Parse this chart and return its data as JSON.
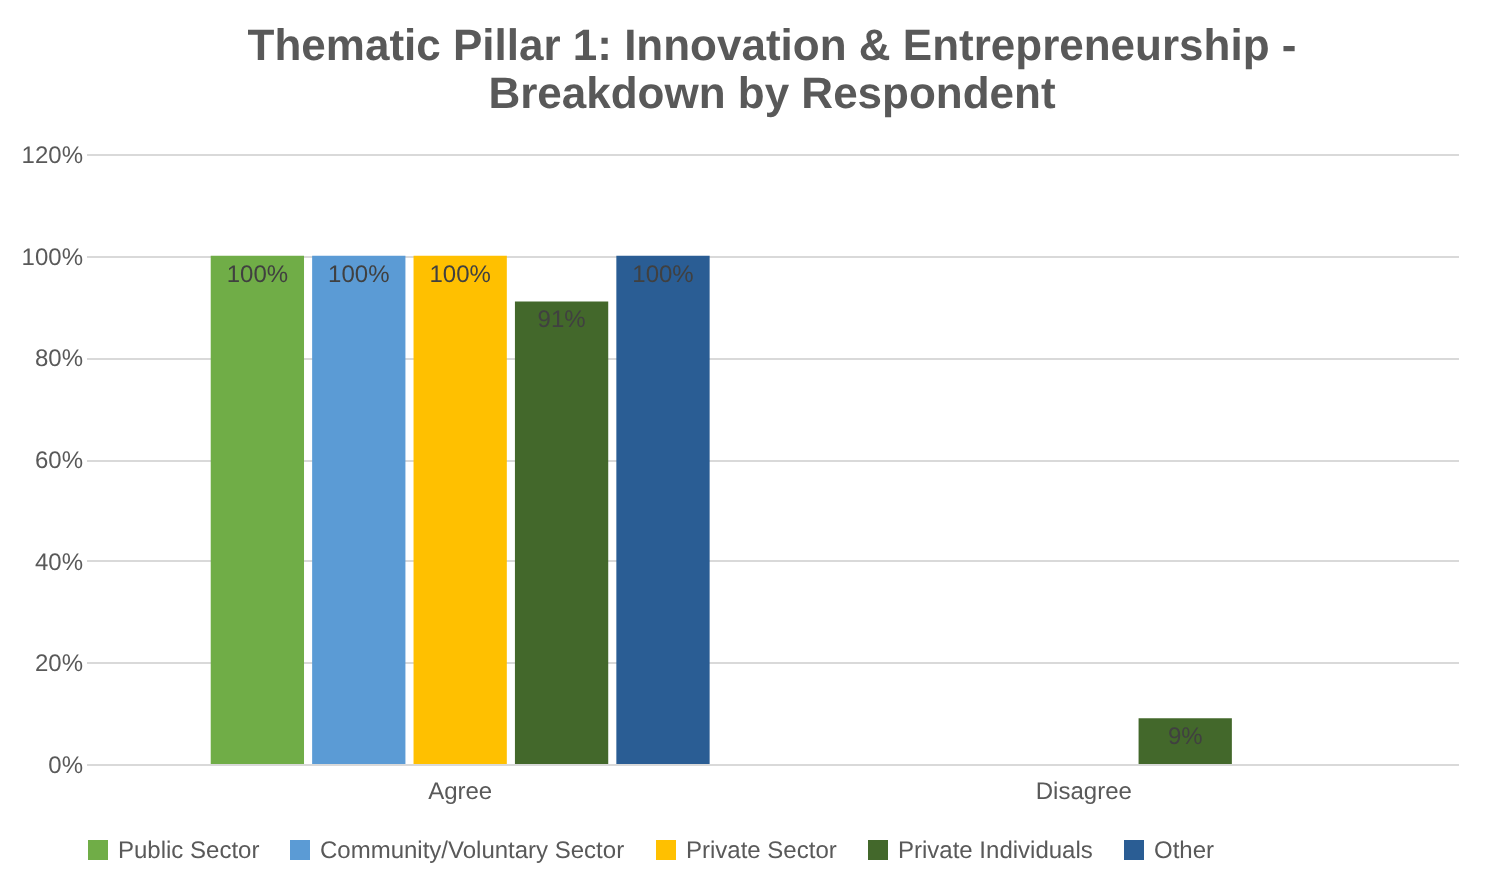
{
  "chart_data": {
    "type": "bar",
    "title": "Thematic Pillar 1: Innovation & Entrepreneurship - Breakdown by Respondent",
    "categories": [
      "Agree",
      "Disagree"
    ],
    "series": [
      {
        "name": "Public Sector",
        "color": "#70ad47",
        "values": [
          100,
          null
        ],
        "value_labels": [
          "100%",
          null
        ]
      },
      {
        "name": "Community/Voluntary Sector",
        "color": "#5b9bd5",
        "values": [
          100,
          null
        ],
        "value_labels": [
          "100%",
          null
        ]
      },
      {
        "name": "Private Sector",
        "color": "#ffc000",
        "values": [
          100,
          null
        ],
        "value_labels": [
          "100%",
          null
        ]
      },
      {
        "name": "Private Individuals",
        "color": "#43682b",
        "values": [
          91,
          9
        ],
        "value_labels": [
          "91%",
          "9%"
        ]
      },
      {
        "name": "Other",
        "color": "#2a5d94",
        "values": [
          100,
          null
        ],
        "value_labels": [
          "100%",
          null
        ]
      }
    ],
    "ylim": [
      0,
      120
    ],
    "yticks": [
      {
        "value": 0,
        "label": "0%"
      },
      {
        "value": 20,
        "label": "20%"
      },
      {
        "value": 40,
        "label": "40%"
      },
      {
        "value": 60,
        "label": "60%"
      },
      {
        "value": 80,
        "label": "80%"
      },
      {
        "value": 100,
        "label": "100%"
      },
      {
        "value": 120,
        "label": "120%"
      }
    ],
    "grid": "y",
    "legend": "bottom"
  }
}
